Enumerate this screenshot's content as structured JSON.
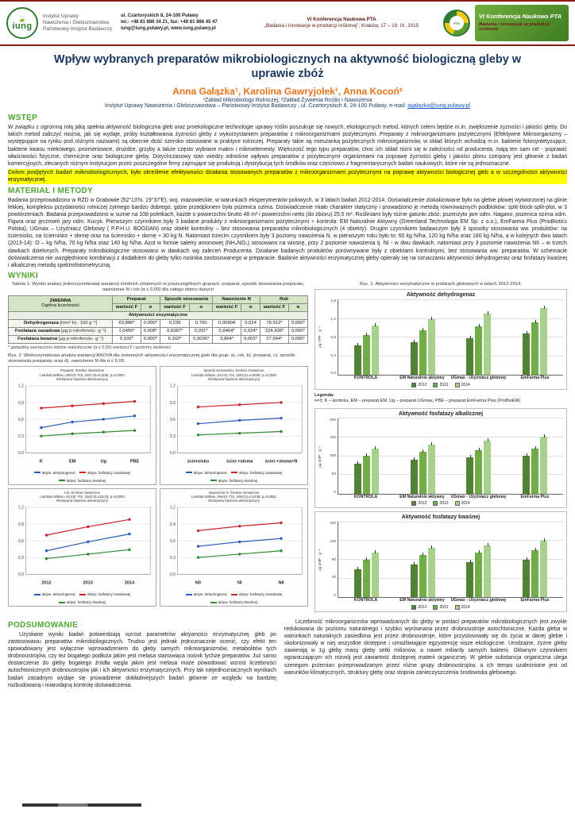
{
  "header": {
    "logo_word": "iung",
    "institute_lines": [
      "Instytut Uprawy",
      "Nawożenia i Gleboznawstwa",
      "Państwowy Instytut Badawczy"
    ],
    "address_lines": [
      "ul. Czartoryskich 8, 24-100 Puławy",
      "tel.: +48 81 886 34 21, fax: +48 81 886 45 47",
      "iung@iung.pulawy.pl, www.iung.pulawy.pl"
    ],
    "conference_line1": "VI Konferencja Naukowa PTA",
    "conference_line2": "„Badania i innowacje w produkcji roślinnej”, Kraków, 17 – 19. IX. 2015",
    "badge_title": "VI Konferencja Naukowa PTA",
    "badge_sub": "Badania i innowacje w produkcji roślinnej",
    "round_badge_text": "PTA"
  },
  "title": "Wpływ wybranych preparatów mikrobiologicznych na aktywność biologiczną gleby w uprawie zbóż",
  "authors": "Anna Gałązka¹, Karolina Gawryjołek¹, Anna Kocoń²",
  "affiliations": {
    "line1": "¹Zakład Mikrobiologii Rolniczej; ²Zakład Żywienia Roślin i Nawożenia",
    "line2_prefix": "Instytut Uprawy Nawożenia i Gleboznawstwa – Państwowy Instytut Badawczy , ul. Czartoryskich 8, 24-100 Puławy,  e-mail: ",
    "email": "agalazka@iung.pulawy.pl"
  },
  "sections": {
    "wstep": {
      "heading": "WSTĘP",
      "body": "W związku z ogromną rolą jaką spełnia aktywność biologiczna gleb oraz proekologiczne technologie uprawy roślin poszukuje się nowych, ekologicznych metod, których celem będzie m.in. zwiększenie żyzności i jakości gleby. Do takich metod zaliczyć można, jak się wydaje, próby kształtowania żyzności gleby z wykorzystaniem preparatów z mikroorganizmami pożytecznymi. Preparaty z mikroorganizmami pożytecznymi (Efektywne Mikroorganizmy – występujące na rynku pod różnymi nazwami) są obecnie dość szeroko stosowane w praktyce rolniczej. Preparaty takie są mieszanką pożytecznych mikroorganizmów, w skład których wchodzą m.in. bakterie fotosyntetyzujące, bakterie kwasu mlekowego, promieniowce, drożdże, grzyby a także często wybrane makro i mikroelementy. Większość tego typu preparatów, choć ich skład różni się w zależności od producenta, mają ten sam cel - poprawić właściwości fizyczne, chemiczne oraz biologiczne gleby. Dotychczasowy stan wiedzy odnośnie wpływu preparatów z pożytecznymi organizmami na poprawę żyzności gleby i jakości plonu czerpany jest głównie z badań komercyjnych, zlecanych różnym instytucjom przez poszczególne firmy zajmujące się produkcją i dystrybucją tych środków oraz częściowo z fragmentarycznych badań naukowych, które nie są jednoznaczne.",
      "highlight_bold": "Celem podjętych badań mikrobiologicznych,",
      "highlight_rest": " było określenie efektywności działania stosowanych preparatów z mikroorganizmami pożytecznymi na poprawę aktywności biologicznej gleb a w szczególności aktywności enzymatycznej."
    },
    "metody": {
      "heading": "MATERIAŁ I METODY",
      "body": "Badania przeprowadzono w RZD w Grabowie (52°13'N, 19°37'E), woj. mazowieckie, w warunkach eksperymentów polowych, w 3 latach badań 2012-2014. Doświadczenie zlokalizowane było na glebie płowej wytworzonej na glinie lekkiej, kompleksu przydatności rolniczej żytniego bardzo dobrego, gdzie przedplonem była pszenica ozima. Doświadczenie miało charakter statyczny i prowadzono je metodą równoważnych podbloków: split-block-split-plot, w 3 powtórzeniach. Badania przeprowadzono w sumie na 108 poletkach, każde o powierzchni brutto 48 m² i powierzchni netto (do zbioru) 25,5 m². Rośliniami były różne gatunki zbóż: pszenżyto jare odm. Nagano, pszenica ozima odm. Figura oraz  jęczmień jary odm. Kucyk. Pierwszym czynnikiem były 3 badane produkty z mikroorganizmami pożytecznymi + kontrola: EM Naturalnie Aktywny (Greenland Technologia EM Sp. z o.o.), EmFarma Plus (PrioBiotics Polska), UGmax – Użyźniacz Glebowy ( P.P.H.U. BOGDAN) oraz obiekt kontrolny – bez stosowania preparatów mikrobiologicznych (4 obiekty). Drugim czynnikiem badawczym były  3 sposoby stosowania ww. produktów: na ściernisko, na ściernisko + słomę oraz na ściernisko + słomę + 30 kg N. Natomiast trzecim czynnikiem były 3 poziomy nawożenia N, w pierwszym roku było to: 60 kg N/ha, 120 kg N/ha oraz 180 kg N/ha, a w kolejnych dwu latach (2013-14): O – kg N/ha, 70 kg N/ha  oraz 140 kg N/ha.  Azot w formie saletry amonowej (NH₄NO₃) stosowano  na wiosnę, przy 2 poziomie nawożenia tj. NI - w dwu dawkach, natomiast przy 3 poziomie nawożenia NII – w trzech dawkach dzielonych. Preparaty mikrobiologiczne stosowano w dawkach wg zaleceń Producenta. Działanie badanych produktów porównywane były z obiektami kontrolnymi, bez stosowania ww. preparatów. W schemacie doświadczenia nie uwzględniono kombinacji z dodatkiem do gleby tylko nośnika zastosowanego w preparacie. Badanie aktywności enzymatycznej gleby opierały się na oznaczaniu aktywności dehydrogenaz oraz fosfatazy kwaśnej i alkalicznej metodą spektrofotometryczną."
    },
    "wyniki": {
      "heading": "WYNIKI"
    },
    "podsumowanie": {
      "heading": "PODSUMOWANIE",
      "body": "Uzyskane wyniki badań potwierdzają wzrost parametrów aktywności enzymatycznej gleb po zastosowaniu preparatów mikrobiologicznych. Trudno jest jednak jednoznacznie ocenić, czy efekt ten spowodowany jest wyłącznie wprowadzeniem do gleby samych mikroorganizmów, metabolitów tych drobnoustrojów, czy też bogatego podłoża jakim jest melasa stanowiąca nośnik tychże preparatów. Już samo dostarczenie do gleby bogatego źródła węgla jakim jest melasa może powodować wzrost liczebności autochtonicznych drobnoustrojów jak i ich aktywności enzymatycznych. Przy tak niejednoznacznych wynikach badań zasadnym wydaje się prowadzenie dokładniejszych badań głównie ze względu na bardziej rozbudowaną i miarodajną kontrolę doświadczenia."
    },
    "bottom_right": {
      "body": "Liczebność mikroorganizmów wprowadzanych do gleby w postaci preparatów mikrobiologicznych jest zwykle redukowana do poziomu naturalnego i szybko wyrównana przez drobnoustroje autochtoniczne. Każda gleba w warunkach naturalnych zasiedlona jest przez drobnoustroje, które przystosowały się do życia w danej glebie i skolonizowały w niej wszystkie dostępne i umożliwiające egzystencję nisze ekologiczne. Urodzajne, żyzne gleby zawierają w 1g gleby masy gleby setki milionów, a nawet miliardy samych bakterii. Głównym czynnikiem ograniczającym ich rozwój jest zawartość dostępnej materii organicznej. W glebie substancja organiczna ulega szeregom przemian przeprowadzanym przez różne grupy drobnoustrojów, a ich tempo uzależnione jest od warunków klimatycznych, struktury gleby oraz stopnia zanieczyszczenia środowiska glebowego."
    }
  },
  "table1": {
    "caption": "Tabela 1. Wyniki analizy jednoczynnikowej wariancji średnich zmiennych w poszczególnych grupach: preparat, sposób stosowania preparatu, nawożenie N i rok (α ≤ 0,05) dla całego zbioru danych",
    "var_header": "ZMIENNA",
    "var_sub": "Ogólna liczebność",
    "groups": [
      "Preparat",
      "Sposób stosowania",
      "Nawożenie N",
      "Rok"
    ],
    "sub": [
      "wartość F",
      "α"
    ],
    "section_row": "Aktywności enzymatyczne",
    "rows": [
      {
        "name": "Dehydrogenaza",
        "unit": "[mm³ H₂ ·100 g⁻¹]",
        "values": [
          "63,886*",
          "0,000*",
          "0,236",
          "0,790",
          "0,00904",
          "0,024",
          "78.512*",
          "0,000*"
        ]
      },
      {
        "name": "Fosfataza zasadowa",
        "unit": "[µg p-nitrofenolu ·g⁻¹]",
        "values": [
          "1,0456*",
          "0,008*",
          "0,6387*",
          "0,031*",
          "0,6464*",
          "0,024*",
          "224,436*",
          "0,000*"
        ]
      },
      {
        "name": "Fosfataza kwaśna",
        "unit": "[µg p-nitrofenolu ·g⁻¹]",
        "values": [
          "5,932*",
          "0,000*",
          "6,102*",
          "0,0036*",
          "3,864*",
          "0,003*",
          "27,694*",
          "0,000*"
        ]
      }
    ],
    "footnote": "* gwiazdką zaznaczono istotne statystycznie (α ≤ 0,05) wartości F i poziomy istotności"
  },
  "rys1": {
    "caption": "Rys. 1. Aktywności enzymatyczne w próbkach glebowych w latach 2012-2014.",
    "legend_title": "Legenda:",
    "legend_note": "n=3; K – kontrola, EM – preparat EM, Ug – preparat UGmax, PBE – preparat  EmFarma Plus (ProBioEM)",
    "series_colors": [
      "#548235",
      "#70ad47",
      "#a9d18e"
    ]
  },
  "rys2": {
    "caption": "Rys. 2. Wieloczynnikowa analiza wariancji ANOVA dla zmiennych aktywności enzymatycznej gleb dla grup: a). rok, b). preparat, c). sposób stosowania preparatu oraz d). nawożenie N dla α ≤ 0,05.",
    "series_names": [
      "aktyw. dehydrogenaz",
      "aktyw. fosfatazy zasadowej",
      "aktyw. fosfatazy kwaśnej"
    ],
    "series_colors": [
      "#2a5dbb",
      "#cc2222",
      "#2e8b2e"
    ],
    "panels": [
      {
        "letter": "a",
        "title_lines": [
          "Preparat; Średnie nieważone",
          "Lambda Wilksa=,85423; F(9, 2267,9)=8,1168; p=0,0000",
          "Efektywna hipoteza dekompozycji"
        ],
        "x": [
          "K",
          "EM",
          "Ug",
          "PBE"
        ],
        "ylim": [
          0,
          1.2
        ],
        "series": [
          [
            0.45,
            0.55,
            0.6,
            0.66
          ],
          [
            0.8,
            0.84,
            0.88,
            0.92
          ],
          [
            0.3,
            0.34,
            0.37,
            0.4
          ]
        ]
      },
      {
        "letter": "b",
        "title_lines": [
          "Sposób stosowania; Średnie nieważone",
          "Lambda Wilksa=,91270; F(6, 1882,0)=4,9035; p=0,0000",
          "Efektywna hipoteza dekompozycji"
        ],
        "x": [
          "ściernisko",
          "ścier.+słoma",
          "ścier.+słoma+N"
        ],
        "ylim": [
          0,
          1.2
        ],
        "series": [
          [
            0.52,
            0.58,
            0.62
          ],
          [
            0.82,
            0.86,
            0.9
          ],
          [
            0.32,
            0.35,
            0.38
          ]
        ]
      },
      {
        "letter": "c",
        "title_lines": [
          "rok; Średnie nieważone",
          "Lambda Wilksa=,52130; F(6, 1882,0)=118,03; p=0,0000",
          "Efektywna hipoteza dekompozycji"
        ],
        "x": [
          "2012",
          "2013",
          "2014"
        ],
        "ylim": [
          0,
          1.2
        ],
        "series": [
          [
            0.42,
            0.58,
            0.72
          ],
          [
            0.7,
            0.85,
            0.98
          ],
          [
            0.28,
            0.36,
            0.44
          ]
        ]
      },
      {
        "letter": "d",
        "title_lines": [
          "nawożenie N; Średnie nieważone",
          "Lambda Wilksa=,96410; F(6, 1882,0)=2,9138; p=0,0081",
          "Efektywna hipoteza dekompozycji"
        ],
        "x": [
          "N0",
          "NI",
          "NII"
        ],
        "ylim": [
          0,
          1.2
        ],
        "series": [
          [
            0.5,
            0.58,
            0.64
          ],
          [
            0.78,
            0.86,
            0.92
          ],
          [
            0.3,
            0.36,
            0.42
          ]
        ]
      }
    ]
  },
  "chart_data": [
    {
      "id": "dehydrogenazy",
      "type": "bar",
      "title": "Aktywność dehydrogenaz",
      "ylabel": "µg TPF · g⁻¹",
      "categories": [
        "KONTROLA",
        "EM Naturalnie aktywny",
        "UGmax - Użyźniacz glebowy",
        "EmFarma Plus"
      ],
      "series": [
        {
          "name": "2012",
          "values": [
            0.62,
            0.7,
            0.78,
            0.88
          ]
        },
        {
          "name": "2013",
          "values": [
            0.84,
            0.95,
            1.04,
            1.12
          ]
        },
        {
          "name": "2014",
          "values": [
            1.05,
            1.18,
            1.3,
            1.42
          ]
        }
      ],
      "ylim": [
        0,
        1.6
      ],
      "legend_position": "bottom",
      "grid": true
    },
    {
      "id": "fosfataza-alkaliczna",
      "type": "bar",
      "title": "Aktywność fosfatazy alkalicznej",
      "ylabel": "µg pNP · g⁻¹",
      "categories": [
        "KONTROLA",
        "EM Naturalnie aktywny",
        "UGmax - Użyźniacz glebowy",
        "EmFarma Plus"
      ],
      "series": [
        {
          "name": "2012",
          "values": [
            80,
            90,
            95,
            100
          ]
        },
        {
          "name": "2013",
          "values": [
            100,
            110,
            115,
            120
          ]
        },
        {
          "name": "2014",
          "values": [
            120,
            130,
            140,
            150
          ]
        }
      ],
      "ylim": [
        0,
        200
      ],
      "legend_position": "bottom",
      "grid": true
    },
    {
      "id": "fosfataza-kwasna",
      "type": "bar",
      "title": "Aktywność fosfatazy kwaśnej",
      "ylabel": "µg pNP · g⁻¹",
      "categories": [
        "KONTROLA",
        "EM Naturalnie aktywny",
        "UGmax - Użyźniacz glebowy",
        "EmFarma Plus"
      ],
      "series": [
        {
          "name": "2012",
          "values": [
            60,
            70,
            75,
            80
          ]
        },
        {
          "name": "2013",
          "values": [
            80,
            90,
            95,
            100
          ]
        },
        {
          "name": "2014",
          "values": [
            95,
            105,
            110,
            120
          ]
        }
      ],
      "ylim": [
        0,
        160
      ],
      "legend_position": "bottom",
      "grid": true
    }
  ],
  "colors": {
    "accent_green": "#4ea72e",
    "maroon": "#8c1a11",
    "orange": "#e8731a",
    "navy": "#17375e",
    "highlight_yellow": "#ffff00"
  }
}
